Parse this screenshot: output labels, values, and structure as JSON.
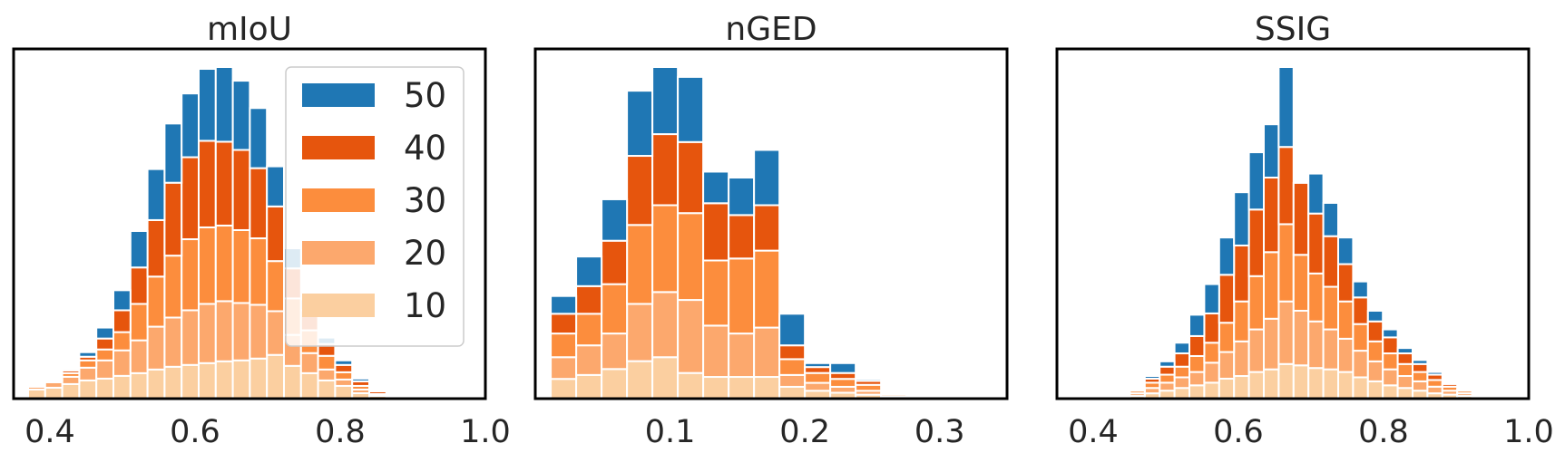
{
  "chart_data": [
    {
      "type": "bar",
      "stacking": "stacked-histogram",
      "title": "mIoU",
      "xlabel": "",
      "ylabel": "",
      "xlim": [
        0.35,
        1.0
      ],
      "xticks": [
        "0.4",
        "0.6",
        "0.8",
        "1.0"
      ],
      "bin_start": 0.37,
      "bin_width": 0.0235,
      "colors": [
        "#fbcfa0",
        "#fca86d",
        "#fc8d3d",
        "#e6550d",
        "#1f77b4"
      ],
      "legend": {
        "position": "top-right",
        "labels": [
          "50",
          "40",
          "30",
          "20",
          "10"
        ]
      },
      "series": [
        {
          "name": "10",
          "values": [
            0.1,
            0.12,
            0.16,
            0.2,
            0.22,
            0.25,
            0.28,
            0.32,
            0.35,
            0.37,
            0.39,
            0.41,
            0.42,
            0.44,
            0.48,
            0.36,
            0.28,
            0.2,
            0.14,
            0.06,
            0.03,
            0.01
          ]
        },
        {
          "name": "20",
          "values": [
            0.03,
            0.06,
            0.08,
            0.14,
            0.2,
            0.28,
            0.36,
            0.47,
            0.54,
            0.6,
            0.65,
            0.66,
            0.63,
            0.59,
            0.48,
            0.34,
            0.22,
            0.12,
            0.07,
            0.04,
            0.01,
            0.0
          ]
        },
        {
          "name": "30",
          "values": [
            0.0,
            0.02,
            0.04,
            0.08,
            0.12,
            0.2,
            0.4,
            0.55,
            0.68,
            0.78,
            0.84,
            0.83,
            0.8,
            0.73,
            0.55,
            0.4,
            0.25,
            0.15,
            0.08,
            0.04,
            0.01,
            0.0
          ]
        },
        {
          "name": "40",
          "values": [
            0.0,
            0.01,
            0.03,
            0.04,
            0.12,
            0.24,
            0.4,
            0.62,
            0.8,
            0.9,
            0.95,
            0.92,
            0.88,
            0.77,
            0.6,
            0.33,
            0.22,
            0.13,
            0.08,
            0.05,
            0.03,
            0.0
          ]
        },
        {
          "name": "50",
          "values": [
            0.0,
            0.01,
            0.02,
            0.05,
            0.12,
            0.22,
            0.4,
            0.56,
            0.65,
            0.7,
            0.79,
            0.82,
            0.76,
            0.66,
            0.44,
            0.22,
            0.12,
            0.07,
            0.05,
            0.03,
            0.01,
            0.0
          ]
        }
      ]
    },
    {
      "type": "bar",
      "stacking": "stacked-histogram",
      "title": "nGED",
      "xlabel": "",
      "ylabel": "",
      "xlim": [
        0.0,
        0.35
      ],
      "xticks": [
        "0.1",
        "0.2",
        "0.3"
      ],
      "bin_start": 0.0115,
      "bin_width": 0.01885,
      "colors": [
        "#fbcfa0",
        "#fca86d",
        "#fc8d3d",
        "#e6550d",
        "#1f77b4"
      ],
      "legend": null,
      "series": [
        {
          "name": "10",
          "values": [
            1.0,
            1.2,
            1.5,
            1.9,
            2.1,
            1.3,
            1.1,
            1.1,
            1.1,
            0.6,
            0.4,
            0.3,
            0.2,
            0.1,
            0.05,
            0.05
          ]
        },
        {
          "name": "20",
          "values": [
            1.1,
            1.5,
            1.8,
            2.9,
            3.3,
            3.7,
            2.6,
            2.2,
            2.5,
            0.6,
            0.4,
            0.3,
            0.2,
            0.1,
            0.05,
            0.05
          ]
        },
        {
          "name": "30",
          "values": [
            1.2,
            1.6,
            2.5,
            4.0,
            4.4,
            4.4,
            3.3,
            3.8,
            3.9,
            0.8,
            0.5,
            0.4,
            0.3,
            0.0,
            0.0,
            0.0
          ]
        },
        {
          "name": "40",
          "values": [
            1.0,
            1.4,
            2.2,
            3.5,
            3.6,
            3.6,
            2.9,
            2.2,
            2.3,
            0.7,
            0.3,
            0.3,
            0.2,
            0.0,
            0.0,
            0.0
          ]
        },
        {
          "name": "50",
          "values": [
            0.9,
            1.5,
            2.1,
            3.3,
            3.4,
            3.3,
            1.6,
            1.9,
            2.8,
            1.6,
            0.2,
            0.5,
            0.1,
            0.0,
            0.0,
            0.0
          ]
        }
      ]
    },
    {
      "type": "bar",
      "stacking": "stacked-histogram",
      "title": "SSIG",
      "xlabel": "",
      "ylabel": "",
      "xlim": [
        0.35,
        1.0
      ],
      "xticks": [
        "0.4",
        "0.6",
        "0.8",
        "1.0"
      ],
      "bin_start": 0.43,
      "bin_width": 0.0205,
      "colors": [
        "#fbcfa0",
        "#fca86d",
        "#fc8d3d",
        "#e6550d",
        "#1f77b4"
      ],
      "legend": null,
      "series": [
        {
          "name": "10",
          "values": [
            0.01,
            0.02,
            0.04,
            0.06,
            0.08,
            0.1,
            0.12,
            0.15,
            0.17,
            0.2,
            0.22,
            0.26,
            0.25,
            0.23,
            0.22,
            0.2,
            0.16,
            0.13,
            0.1,
            0.08,
            0.06,
            0.04,
            0.03,
            0.02,
            0.01
          ]
        },
        {
          "name": "20",
          "values": [
            0.0,
            0.02,
            0.04,
            0.06,
            0.08,
            0.1,
            0.15,
            0.2,
            0.26,
            0.32,
            0.38,
            0.47,
            0.41,
            0.35,
            0.3,
            0.25,
            0.2,
            0.15,
            0.12,
            0.09,
            0.07,
            0.05,
            0.03,
            0.02,
            0.0
          ]
        },
        {
          "name": "30",
          "values": [
            0.0,
            0.02,
            0.04,
            0.06,
            0.08,
            0.12,
            0.15,
            0.22,
            0.3,
            0.4,
            0.5,
            0.58,
            0.42,
            0.36,
            0.32,
            0.28,
            0.2,
            0.15,
            0.12,
            0.09,
            0.07,
            0.05,
            0.03,
            0.02,
            0.0
          ]
        },
        {
          "name": "40",
          "values": [
            0.0,
            0.01,
            0.03,
            0.06,
            0.1,
            0.15,
            0.22,
            0.36,
            0.42,
            0.5,
            0.56,
            0.58,
            0.54,
            0.45,
            0.38,
            0.28,
            0.2,
            0.15,
            0.12,
            0.08,
            0.06,
            0.04,
            0.02,
            0.01,
            0.0
          ]
        },
        {
          "name": "50",
          "values": [
            0.0,
            0.01,
            0.02,
            0.04,
            0.08,
            0.16,
            0.22,
            0.28,
            0.4,
            0.43,
            0.4,
            0.6,
            0.0,
            0.3,
            0.25,
            0.2,
            0.12,
            0.08,
            0.06,
            0.04,
            0.03,
            0.02,
            0.01,
            0.0,
            0.0
          ]
        }
      ]
    }
  ]
}
